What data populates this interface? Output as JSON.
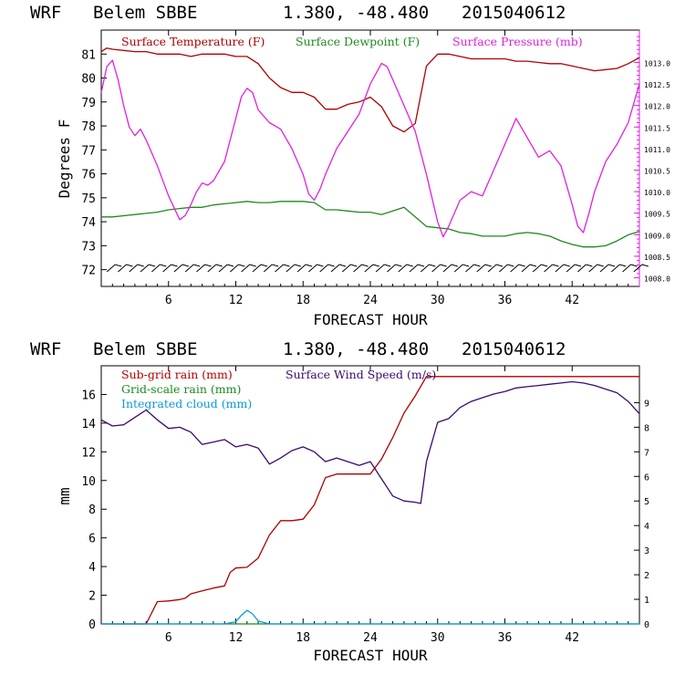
{
  "colors": {
    "temperature": "#b00000",
    "dewpoint": "#1e8a1e",
    "pressure": "#e020e0",
    "subgrid_rain": "#b00000",
    "gridscale_rain": "#1e8a1e",
    "cloud": "#0a9bd6",
    "wind_speed": "#3a0a6e",
    "axis": "#000000"
  },
  "chart_data": [
    {
      "type": "line",
      "header": {
        "model": "WRF",
        "station": "Belem SBBE",
        "coords": "1.380, -48.480",
        "init": "2015040612"
      },
      "title": "",
      "xlabel": "FORECAST HOUR",
      "ylabel": "Degrees F",
      "xlim": [
        0,
        48
      ],
      "ylim": [
        71.3,
        82.0
      ],
      "xticks": [
        "6",
        "12",
        "18",
        "24",
        "30",
        "36",
        "42"
      ],
      "yticks": [
        "72",
        "73",
        "74",
        "75",
        "76",
        "77",
        "78",
        "79",
        "80",
        "81"
      ],
      "y2lim": [
        1007.8,
        1013.75
      ],
      "y2ticks": [
        "1008.0",
        "1008.5",
        "1009.0",
        "1009.5",
        "1010.0",
        "1010.5",
        "1011.0",
        "1011.5",
        "1012.0",
        "1012.5",
        "1013.0"
      ],
      "legend_placement": "top",
      "wind_barbs": "row of wind barbs along the bottom of the panel",
      "series": [
        {
          "name": "Surface Temperature (F)",
          "axis": "left",
          "x": [
            0,
            0.5,
            1,
            2,
            3,
            4,
            5,
            6,
            7,
            8,
            9,
            10,
            11,
            12,
            13,
            14,
            15,
            16,
            17,
            18,
            19,
            20,
            21,
            22,
            23,
            24,
            25,
            26,
            27,
            28,
            29,
            30,
            31,
            32,
            33,
            34,
            35,
            36,
            37,
            38,
            39,
            40,
            41,
            42,
            43,
            44,
            45,
            46,
            47,
            48
          ],
          "y": [
            81.1,
            81.25,
            81.2,
            81.15,
            81.1,
            81.1,
            81.0,
            81.0,
            81.0,
            80.9,
            81.0,
            81.0,
            81.0,
            80.9,
            80.9,
            80.6,
            80.0,
            79.6,
            79.4,
            79.4,
            79.2,
            78.7,
            78.7,
            78.9,
            79.0,
            79.2,
            78.8,
            78.0,
            77.75,
            78.1,
            80.5,
            81.0,
            81.0,
            80.9,
            80.8,
            80.8,
            80.8,
            80.8,
            80.7,
            80.7,
            80.65,
            80.6,
            80.6,
            80.5,
            80.4,
            80.3,
            80.35,
            80.4,
            80.6,
            80.85
          ]
        },
        {
          "name": "Surface Dewpoint (F)",
          "axis": "left",
          "x": [
            0,
            1,
            2,
            3,
            4,
            5,
            6,
            7,
            8,
            9,
            10,
            11,
            12,
            13,
            14,
            15,
            16,
            17,
            18,
            19,
            20,
            21,
            22,
            23,
            24,
            25,
            26,
            27,
            28,
            29,
            30,
            31,
            32,
            33,
            34,
            35,
            36,
            37,
            38,
            39,
            40,
            41,
            42,
            43,
            44,
            45,
            46,
            47,
            48
          ],
          "y": [
            74.2,
            74.2,
            74.25,
            74.3,
            74.35,
            74.4,
            74.5,
            74.55,
            74.6,
            74.6,
            74.7,
            74.75,
            74.8,
            74.85,
            74.8,
            74.8,
            74.85,
            74.85,
            74.85,
            74.8,
            74.5,
            74.5,
            74.45,
            74.4,
            74.4,
            74.3,
            74.45,
            74.6,
            74.2,
            73.8,
            73.75,
            73.7,
            73.55,
            73.5,
            73.4,
            73.4,
            73.4,
            73.5,
            73.55,
            73.5,
            73.4,
            73.2,
            73.05,
            72.95,
            72.95,
            73.0,
            73.2,
            73.45,
            73.6
          ]
        },
        {
          "name": "Surface Pressure (mb)",
          "axis": "right",
          "x": [
            0,
            0.5,
            1,
            1.5,
            2,
            2.5,
            3,
            3.5,
            4,
            5,
            6,
            7,
            7.5,
            8,
            8.5,
            9,
            9.5,
            10,
            11,
            12,
            12.5,
            13,
            13.5,
            14,
            15,
            16,
            17,
            18,
            18.5,
            19,
            19.5,
            20,
            21,
            22,
            23,
            24,
            25,
            25.5,
            26,
            27,
            28,
            29,
            30,
            30.5,
            31,
            32,
            33,
            34,
            35,
            36,
            37,
            38,
            39,
            40,
            41,
            42,
            42.5,
            43,
            43.5,
            44,
            45,
            46,
            47,
            48
          ],
          "y": [
            1012.3,
            1012.9,
            1013.05,
            1012.6,
            1012.0,
            1011.5,
            1011.3,
            1011.45,
            1011.2,
            1010.6,
            1009.9,
            1009.35,
            1009.45,
            1009.7,
            1010.0,
            1010.2,
            1010.15,
            1010.25,
            1010.7,
            1011.7,
            1012.2,
            1012.4,
            1012.3,
            1011.9,
            1011.6,
            1011.45,
            1011.0,
            1010.4,
            1009.95,
            1009.8,
            1010.05,
            1010.4,
            1011.0,
            1011.4,
            1011.8,
            1012.5,
            1012.98,
            1012.9,
            1012.6,
            1012.0,
            1011.4,
            1010.4,
            1009.3,
            1008.95,
            1009.2,
            1009.8,
            1010.0,
            1009.9,
            1010.5,
            1011.1,
            1011.7,
            1011.25,
            1010.8,
            1010.95,
            1010.6,
            1009.7,
            1009.2,
            1009.05,
            1009.5,
            1010.0,
            1010.7,
            1011.1,
            1011.6,
            1012.5
          ]
        }
      ]
    },
    {
      "type": "line",
      "header": {
        "model": "WRF",
        "station": "Belem SBBE",
        "coords": "1.380, -48.480",
        "init": "2015040612"
      },
      "title": "",
      "xlabel": "FORECAST HOUR",
      "ylabel": "mm",
      "xlim": [
        0,
        48
      ],
      "ylim": [
        0,
        18
      ],
      "xticks": [
        "6",
        "12",
        "18",
        "24",
        "30",
        "36",
        "42"
      ],
      "yticks": [
        "0",
        "2",
        "4",
        "6",
        "8",
        "10",
        "12",
        "14",
        "16"
      ],
      "y2lim": [
        0,
        10.5
      ],
      "y2ticks": [
        "0",
        "1",
        "2",
        "3",
        "4",
        "5",
        "6",
        "7",
        "8",
        "9"
      ],
      "legend_placement": "top",
      "series": [
        {
          "name": "Sub-grid rain (mm)",
          "axis": "left",
          "x": [
            0,
            4,
            5,
            6,
            7,
            7.5,
            8,
            9,
            10,
            11,
            11.5,
            12,
            13,
            14,
            15,
            16,
            17,
            18,
            19,
            20,
            21,
            22,
            23,
            24,
            25,
            26,
            27,
            28,
            29,
            30,
            31,
            32,
            33,
            34,
            35,
            36,
            37,
            38,
            39,
            40,
            41,
            42,
            43,
            44,
            45,
            46,
            47,
            48
          ],
          "y": [
            0,
            0,
            1.55,
            1.6,
            1.7,
            1.8,
            2.1,
            2.3,
            2.5,
            2.65,
            3.6,
            3.9,
            3.95,
            4.6,
            6.2,
            7.2,
            7.2,
            7.3,
            8.3,
            10.2,
            10.45,
            10.45,
            10.45,
            10.45,
            11.5,
            13.0,
            14.7,
            15.9,
            17.25,
            17.25,
            17.25,
            17.25,
            17.25,
            17.25,
            17.25,
            17.25,
            17.25,
            17.25,
            17.25,
            17.25,
            17.25,
            17.25,
            17.25,
            17.25,
            17.25,
            17.25,
            17.25,
            17.25
          ]
        },
        {
          "name": "Grid-scale rain (mm)",
          "axis": "left",
          "x": [
            0,
            48
          ],
          "y": [
            0,
            0
          ]
        },
        {
          "name": "Integrated cloud (mm)",
          "axis": "left",
          "x": [
            0,
            11,
            12,
            12.5,
            13,
            13.5,
            14,
            15,
            48
          ],
          "y": [
            0,
            0,
            0.15,
            0.6,
            0.95,
            0.7,
            0.2,
            0,
            0
          ]
        },
        {
          "name": "Surface Wind Speed (m/s)",
          "axis": "right",
          "x": [
            0,
            1,
            2,
            3,
            4,
            5,
            6,
            7,
            8,
            9,
            10,
            11,
            12,
            13,
            14,
            15,
            16,
            17,
            18,
            19,
            20,
            21,
            22,
            23,
            24,
            25,
            26,
            27,
            28,
            28.5,
            29,
            30,
            31,
            32,
            33,
            34,
            35,
            36,
            37,
            38,
            39,
            40,
            41,
            42,
            43,
            44,
            45,
            46,
            47,
            48
          ],
          "y": [
            8.3,
            8.05,
            8.1,
            8.4,
            8.7,
            8.3,
            7.95,
            8.0,
            7.8,
            7.3,
            7.4,
            7.5,
            7.2,
            7.3,
            7.15,
            6.5,
            6.75,
            7.05,
            7.2,
            7.0,
            6.6,
            6.75,
            6.6,
            6.45,
            6.6,
            5.9,
            5.2,
            5.0,
            4.95,
            4.9,
            6.6,
            8.2,
            8.35,
            8.8,
            9.05,
            9.2,
            9.35,
            9.45,
            9.6,
            9.65,
            9.7,
            9.75,
            9.8,
            9.85,
            9.8,
            9.7,
            9.55,
            9.4,
            9.05,
            8.55
          ]
        }
      ]
    }
  ]
}
